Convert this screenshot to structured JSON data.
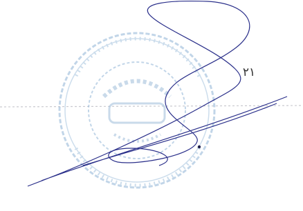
{
  "page_number": "۲۱"
}
